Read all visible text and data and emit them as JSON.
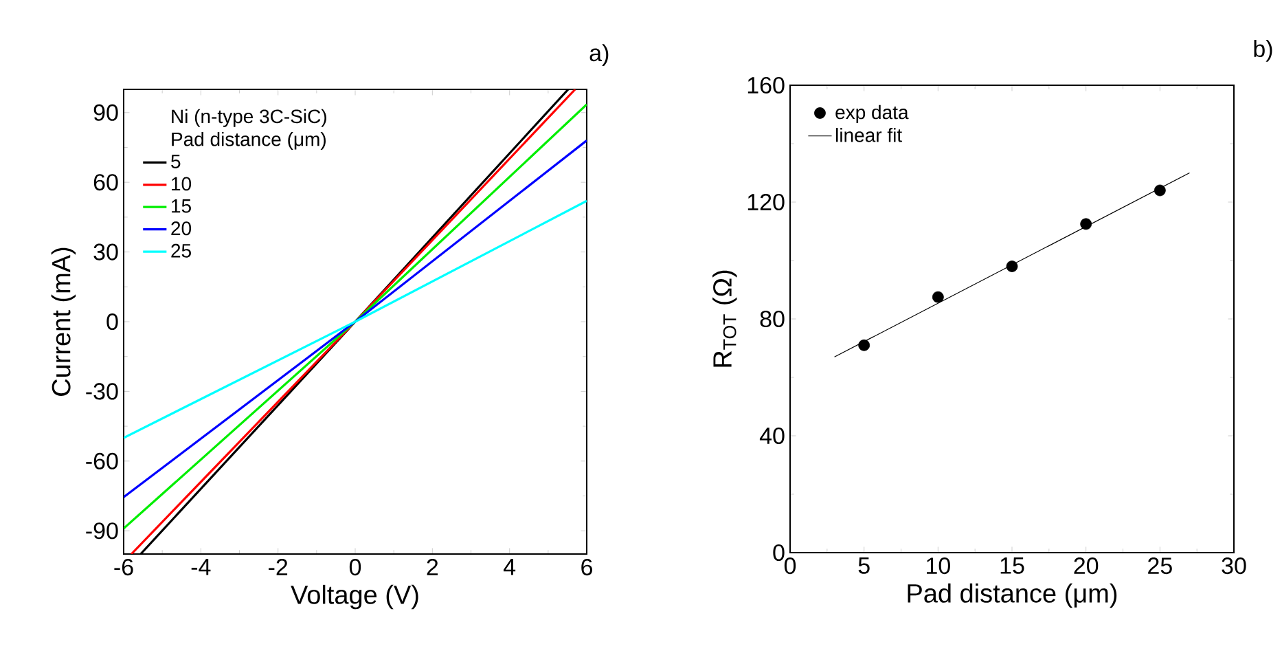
{
  "chart_data": [
    {
      "type": "line",
      "xlabel": "Voltage (V)",
      "ylabel": "Current (mA)",
      "xlim": [
        -6,
        6
      ],
      "ylim": [
        -100,
        100
      ],
      "xticks": [
        -6,
        -4,
        -2,
        0,
        2,
        4,
        6
      ],
      "yticks": [
        -90,
        -60,
        -30,
        0,
        30,
        60,
        90
      ],
      "legend": "top left",
      "legend_title": "Pad distance (μm)",
      "annotations": [
        "Ni (n-type 3C-SiC)",
        "a)"
      ],
      "series": [
        {
          "name": "5",
          "color": "#000000",
          "x": [
            -5.56,
            0,
            5.52
          ],
          "values": [
            -100,
            0,
            100
          ]
        },
        {
          "name": "10",
          "color": "#ff0000",
          "x": [
            -5.8,
            0,
            5.7
          ],
          "values": [
            -100,
            0,
            100
          ]
        },
        {
          "name": "15",
          "color": "#00ee00",
          "x": [
            -6,
            0,
            6
          ],
          "values": [
            -89,
            0,
            93.5
          ]
        },
        {
          "name": "20",
          "color": "#0000ff",
          "x": [
            -6,
            0,
            6
          ],
          "values": [
            -75.5,
            0,
            78
          ]
        },
        {
          "name": "25",
          "color": "#00ffff",
          "x": [
            -6,
            0,
            6
          ],
          "values": [
            -50,
            0,
            52
          ]
        }
      ]
    },
    {
      "type": "scatter",
      "xlabel": "Pad distance (μm)",
      "ylabel": "R$_{TOT}$ (Ω)",
      "xlim": [
        0,
        30
      ],
      "ylim": [
        0,
        160
      ],
      "xticks": [
        0,
        5,
        10,
        15,
        20,
        25,
        30
      ],
      "yticks": [
        0,
        40,
        80,
        120,
        160
      ],
      "legend": "top left",
      "annotations": [
        "b)"
      ],
      "series": [
        {
          "name": "exp data",
          "color": "#000000",
          "x": [
            5,
            10,
            15,
            20,
            25
          ],
          "values": [
            71,
            87.5,
            98,
            112.5,
            124
          ]
        },
        {
          "name": "linear fit",
          "type": "line",
          "color": "#000000",
          "x": [
            3,
            27
          ],
          "values": [
            67,
            130
          ]
        }
      ]
    }
  ]
}
